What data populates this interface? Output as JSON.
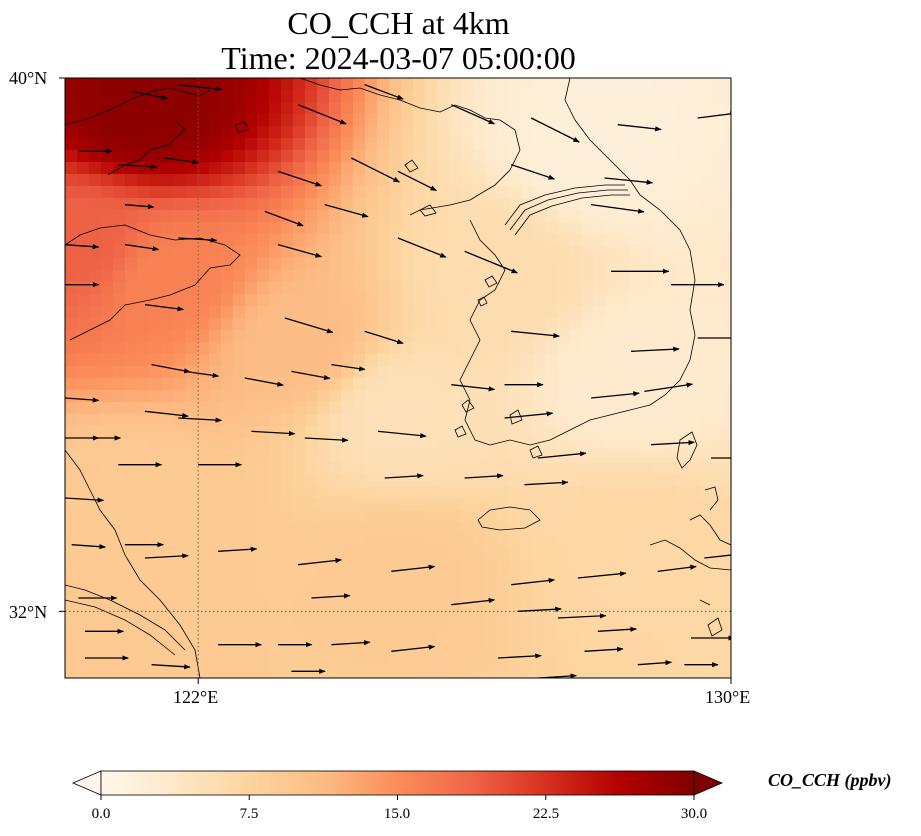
{
  "title": {
    "line1": "CO_CCH at 4km",
    "line2": "Time: 2024-03-07 05:00:00"
  },
  "map": {
    "extent_lon": [
      120,
      130
    ],
    "extent_lat": [
      31,
      40
    ],
    "lat_ticks": [
      {
        "value": 40,
        "label": "40°N"
      },
      {
        "value": 32,
        "label": "32°N"
      }
    ],
    "lon_ticks": [
      {
        "value": 122,
        "label": "122°E"
      },
      {
        "value": 130,
        "label": "130°E"
      }
    ],
    "gridlines": {
      "lon": [
        122
      ],
      "lat": [
        32
      ],
      "style": "dotted"
    },
    "colormap": "OrRd",
    "field_description_areas": [
      {
        "lon": 121.2,
        "lat": 39.5,
        "value": 29
      },
      {
        "lon": 120.3,
        "lat": 37.5,
        "value": 19
      },
      {
        "lon": 121.5,
        "lat": 37.0,
        "value": 16
      },
      {
        "lon": 123.5,
        "lat": 36.0,
        "value": 11
      },
      {
        "lon": 125.0,
        "lat": 35.0,
        "value": 5
      },
      {
        "lon": 126.5,
        "lat": 37.0,
        "value": 6
      },
      {
        "lon": 128.0,
        "lat": 39.0,
        "value": 2
      },
      {
        "lon": 121.0,
        "lat": 33.5,
        "value": 9
      },
      {
        "lon": 125.0,
        "lat": 32.5,
        "value": 9
      },
      {
        "lon": 128.5,
        "lat": 33.0,
        "value": 7
      },
      {
        "lon": 128.5,
        "lat": 35.5,
        "value": 3
      }
    ]
  },
  "colorbar": {
    "label": "CO_CCH (ppbv)",
    "min": 0.0,
    "max": 30.0,
    "ticks": [
      "0.0",
      "7.5",
      "15.0",
      "22.5",
      "30.0"
    ],
    "extend": "both",
    "colors": [
      "#fff7ec",
      "#fee8c8",
      "#fdd49e",
      "#fdbb84",
      "#fc8d59",
      "#ef6548",
      "#d7301f",
      "#b30000",
      "#7f0000"
    ]
  },
  "wind": {
    "unit_note": "",
    "vectors": [
      [
        121.0,
        39.8,
        15,
        -3
      ],
      [
        121.7,
        39.9,
        18,
        -2
      ],
      [
        123.5,
        39.6,
        20,
        -8
      ],
      [
        124.5,
        39.9,
        16,
        -6
      ],
      [
        125.8,
        39.6,
        18,
        -8
      ],
      [
        127.0,
        39.4,
        20,
        -10
      ],
      [
        128.3,
        39.3,
        18,
        -2
      ],
      [
        129.5,
        39.4,
        16,
        2
      ],
      [
        120.2,
        38.9,
        14,
        0
      ],
      [
        120.8,
        38.7,
        16,
        -1
      ],
      [
        121.5,
        38.8,
        14,
        -2
      ],
      [
        123.2,
        38.6,
        18,
        -6
      ],
      [
        124.3,
        38.8,
        20,
        -10
      ],
      [
        125.0,
        38.6,
        16,
        -8
      ],
      [
        126.7,
        38.7,
        18,
        -6
      ],
      [
        128.1,
        38.5,
        20,
        -2
      ],
      [
        120.9,
        38.1,
        12,
        -1
      ],
      [
        123.0,
        38.0,
        16,
        -6
      ],
      [
        123.9,
        38.1,
        18,
        -5
      ],
      [
        127.9,
        38.1,
        22,
        -3
      ],
      [
        120.0,
        37.5,
        14,
        -1
      ],
      [
        120.9,
        37.5,
        14,
        -2
      ],
      [
        121.7,
        37.6,
        16,
        -1
      ],
      [
        123.2,
        37.5,
        18,
        -5
      ],
      [
        125.0,
        37.6,
        20,
        -8
      ],
      [
        126.0,
        37.4,
        22,
        -9
      ],
      [
        128.2,
        37.1,
        24,
        0
      ],
      [
        129.1,
        36.9,
        22,
        0
      ],
      [
        120.0,
        36.9,
        14,
        0
      ],
      [
        121.2,
        36.6,
        16,
        -2
      ],
      [
        123.3,
        36.4,
        20,
        -6
      ],
      [
        124.5,
        36.2,
        16,
        -5
      ],
      [
        126.7,
        36.2,
        20,
        -2
      ],
      [
        128.5,
        35.9,
        20,
        1
      ],
      [
        129.5,
        36.1,
        18,
        0
      ],
      [
        121.3,
        35.7,
        16,
        -3
      ],
      [
        121.8,
        35.6,
        14,
        -2
      ],
      [
        122.7,
        35.5,
        16,
        -3
      ],
      [
        123.4,
        35.6,
        16,
        -3
      ],
      [
        124.0,
        35.7,
        14,
        -2
      ],
      [
        125.8,
        35.4,
        18,
        -2
      ],
      [
        126.6,
        35.4,
        16,
        0
      ],
      [
        127.9,
        35.2,
        20,
        2
      ],
      [
        128.7,
        35.3,
        20,
        3
      ],
      [
        120.0,
        35.2,
        14,
        -1
      ],
      [
        121.2,
        35.0,
        18,
        -2
      ],
      [
        121.7,
        34.9,
        18,
        -1
      ],
      [
        122.8,
        34.7,
        18,
        -1
      ],
      [
        123.6,
        34.6,
        18,
        -1
      ],
      [
        124.7,
        34.7,
        20,
        -2
      ],
      [
        126.6,
        34.9,
        20,
        2
      ],
      [
        127.1,
        34.3,
        20,
        2
      ],
      [
        128.8,
        34.5,
        18,
        1
      ],
      [
        129.7,
        34.3,
        16,
        0
      ],
      [
        120.0,
        34.6,
        14,
        0
      ],
      [
        120.4,
        34.6,
        12,
        0
      ],
      [
        120.8,
        34.2,
        18,
        0
      ],
      [
        122.0,
        34.2,
        18,
        0
      ],
      [
        124.8,
        34.0,
        16,
        1
      ],
      [
        126.0,
        34.0,
        16,
        1
      ],
      [
        126.9,
        33.9,
        18,
        1
      ],
      [
        120.0,
        33.7,
        16,
        -1
      ],
      [
        120.1,
        33.0,
        14,
        -1
      ],
      [
        120.9,
        33.0,
        16,
        0
      ],
      [
        121.2,
        32.8,
        18,
        1
      ],
      [
        122.3,
        32.9,
        16,
        1
      ],
      [
        123.5,
        32.7,
        18,
        2
      ],
      [
        124.9,
        32.6,
        18,
        2
      ],
      [
        126.7,
        32.4,
        18,
        2
      ],
      [
        127.7,
        32.5,
        20,
        2
      ],
      [
        128.9,
        32.6,
        16,
        2
      ],
      [
        129.6,
        32.8,
        18,
        2
      ],
      [
        120.2,
        32.2,
        16,
        0
      ],
      [
        123.7,
        32.2,
        16,
        1
      ],
      [
        125.8,
        32.1,
        18,
        2
      ],
      [
        126.8,
        32.0,
        18,
        1
      ],
      [
        127.4,
        31.9,
        20,
        1
      ],
      [
        128.0,
        31.7,
        16,
        1
      ],
      [
        129.4,
        31.6,
        18,
        0
      ],
      [
        120.3,
        31.7,
        16,
        0
      ],
      [
        122.3,
        31.5,
        18,
        0
      ],
      [
        123.2,
        31.5,
        14,
        0
      ],
      [
        124.0,
        31.5,
        16,
        1
      ],
      [
        124.9,
        31.4,
        18,
        2
      ],
      [
        126.5,
        31.3,
        18,
        1
      ],
      [
        127.8,
        31.4,
        16,
        1
      ],
      [
        128.6,
        31.2,
        14,
        1
      ],
      [
        120.3,
        31.3,
        18,
        0
      ],
      [
        121.3,
        31.2,
        16,
        -1
      ],
      [
        123.4,
        31.1,
        14,
        0
      ],
      [
        127.1,
        31.0,
        16,
        1
      ],
      [
        129.3,
        31.2,
        14,
        0
      ],
      [
        122.2,
        30.8,
        14,
        0
      ],
      [
        123.7,
        30.6,
        14,
        0
      ]
    ]
  }
}
